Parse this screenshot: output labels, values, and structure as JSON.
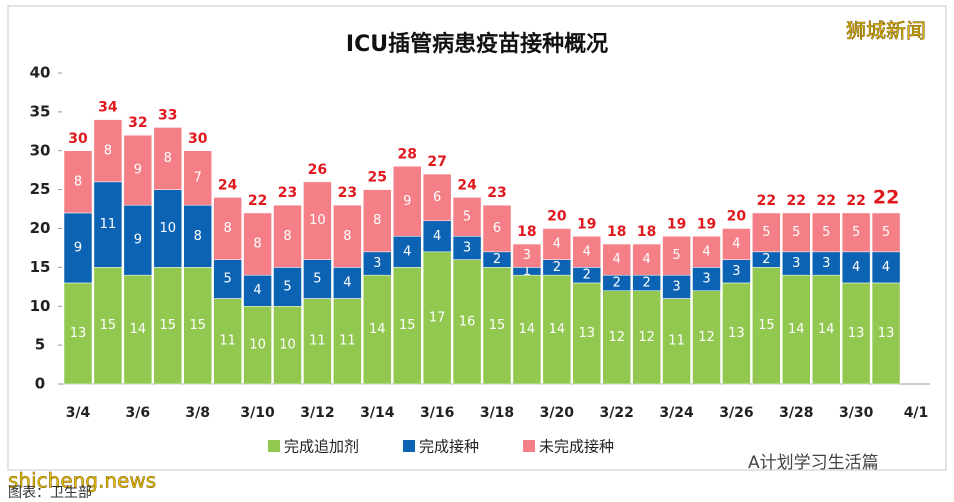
{
  "chart_data": {
    "type": "stacked_bar",
    "title": "ICU插管病患疫苗接种概况",
    "categories": [
      "3/4",
      null,
      "3/6",
      null,
      "3/8",
      null,
      "3/10",
      null,
      "3/12",
      null,
      "3/14",
      null,
      "3/16",
      null,
      "3/18",
      null,
      "3/20",
      null,
      "3/22",
      null,
      "3/24",
      null,
      "3/26",
      null,
      "3/28",
      null,
      "3/30",
      null,
      "4/1"
    ],
    "series": [
      {
        "name": "完成追加剂",
        "color": "#92c84f",
        "values": [
          13,
          15,
          14,
          15,
          15,
          11,
          10,
          10,
          11,
          11,
          14,
          15,
          17,
          16,
          15,
          14,
          14,
          13,
          12,
          12,
          11,
          12,
          13,
          15,
          14,
          14,
          13,
          13,
          null
        ]
      },
      {
        "name": "完成接种",
        "color": "#0d63b3",
        "values": [
          9,
          11,
          9,
          10,
          8,
          5,
          4,
          5,
          5,
          4,
          3,
          4,
          4,
          3,
          2,
          1,
          2,
          2,
          2,
          2,
          3,
          3,
          3,
          2,
          3,
          3,
          4,
          4,
          null
        ]
      },
      {
        "name": "未完成接种",
        "color": "#f47f86",
        "values": [
          8,
          8,
          9,
          8,
          7,
          8,
          8,
          8,
          10,
          8,
          8,
          9,
          6,
          5,
          6,
          3,
          4,
          4,
          4,
          4,
          5,
          4,
          4,
          5,
          5,
          5,
          5,
          5,
          null
        ]
      }
    ],
    "totals": [
      30,
      34,
      32,
      33,
      30,
      24,
      22,
      23,
      26,
      23,
      25,
      28,
      27,
      24,
      23,
      18,
      20,
      19,
      18,
      18,
      19,
      19,
      20,
      22,
      22,
      22,
      22,
      22,
      null
    ],
    "total_color": "#e0191e",
    "ylim": [
      0,
      40
    ],
    "yticks": [
      0,
      5,
      10,
      15,
      20,
      25,
      30,
      35,
      40
    ],
    "watermarks": {
      "brand": "狮城新闻",
      "site": "shicheng.news",
      "account": "A计划学习生活篇",
      "source": "图表：卫生部"
    }
  }
}
